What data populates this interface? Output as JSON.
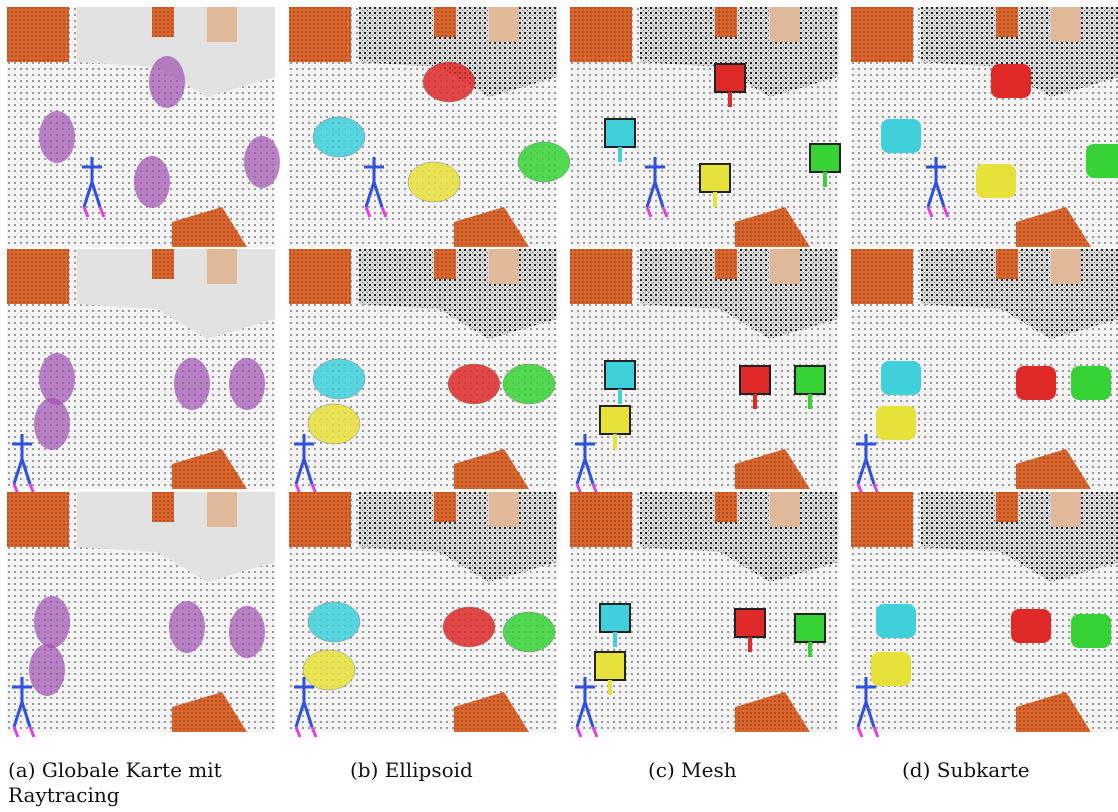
{
  "figure": {
    "captions": [
      "(a) Globale Karte mit Raytracing",
      "(b) Ellipsoid",
      "(c) Mesh",
      "(d) Subkarte"
    ]
  }
}
